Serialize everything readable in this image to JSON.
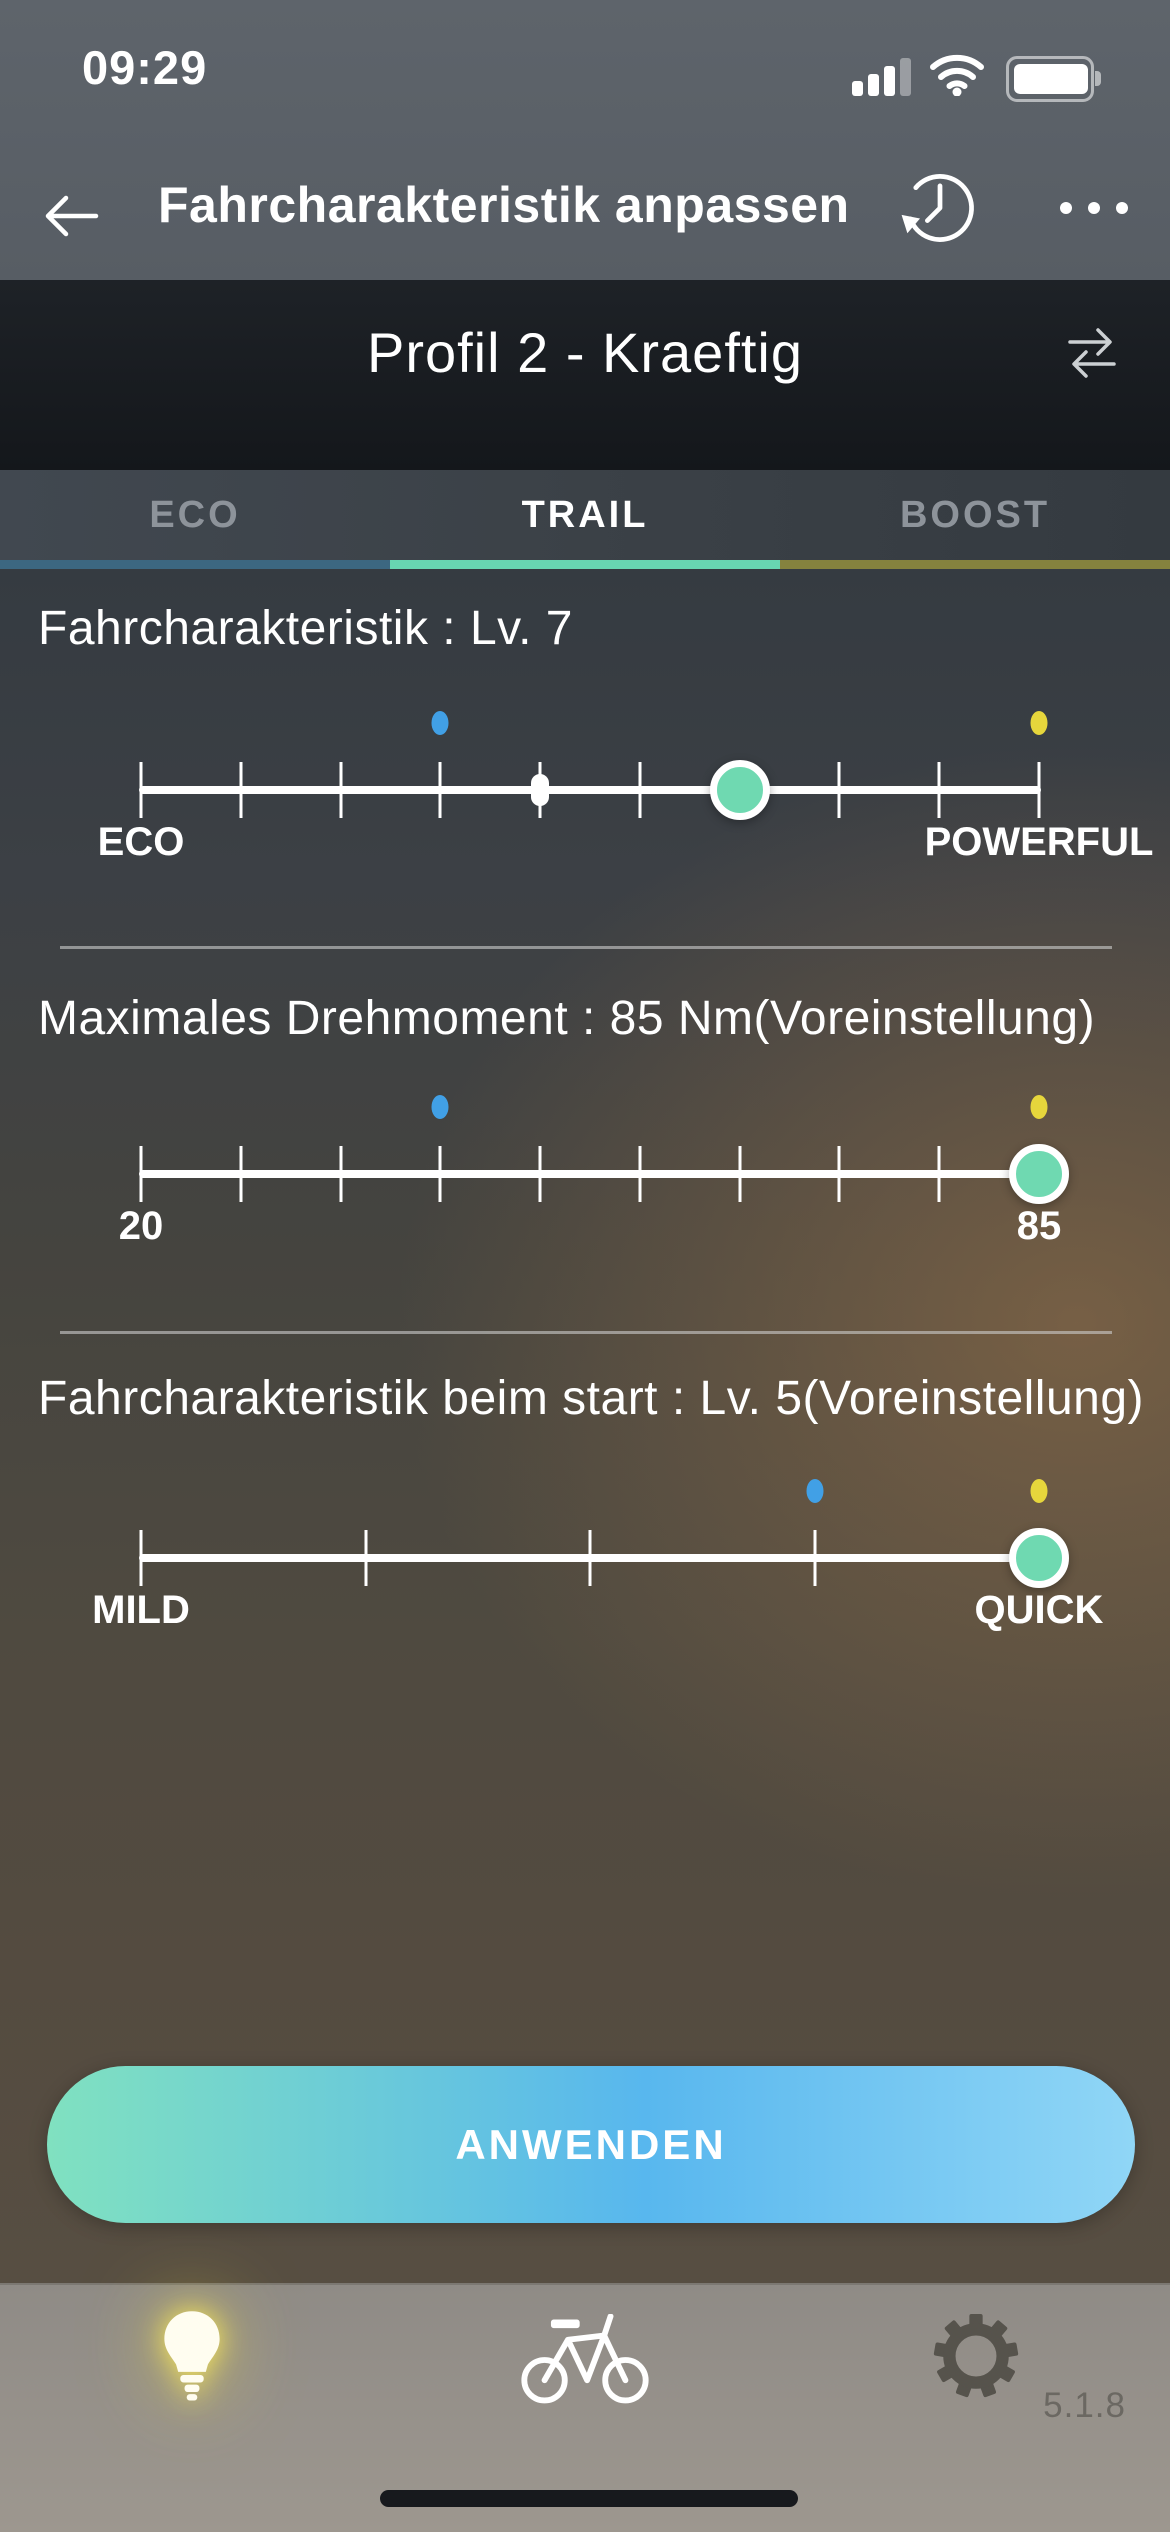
{
  "status_bar": {
    "time": "09:29",
    "signal_icon": "cellular-signal",
    "wifi_icon": "wifi",
    "battery_icon": "battery"
  },
  "header": {
    "back_icon": "back-arrow",
    "title": "Fahrcharakteristik anpassen",
    "history_icon": "history-clock",
    "menu_icon": "ellipsis-menu"
  },
  "profile": {
    "title": "Profil 2 - Kraeftig",
    "swap_icon": "swap-arrows"
  },
  "tabs": [
    {
      "label": "ECO",
      "active": false,
      "underline_color": "#3c6781"
    },
    {
      "label": "TRAIL",
      "active": true,
      "underline_color": "#68d6b2"
    },
    {
      "label": "BOOST",
      "active": false,
      "underline_color": "#85823e"
    }
  ],
  "sliders": [
    {
      "title": "Fahrcharakteristik : Lv. 7",
      "ticks": 10,
      "value": 7,
      "preset_marker": 5,
      "eco_marker": 4,
      "boost_marker": 10,
      "left_label": "ECO",
      "right_label": "POWERFUL"
    },
    {
      "title": "Maximales Drehmoment : 85 Nm(Voreinstellung)",
      "ticks": 10,
      "value": 10,
      "preset_marker": null,
      "eco_marker": 4,
      "boost_marker": 10,
      "left_label": "20",
      "right_label": "85"
    },
    {
      "title": "Fahrcharakteristik beim start : Lv. 5(Voreinstellung)",
      "ticks": 5,
      "value": 5,
      "preset_marker": null,
      "eco_marker": 4,
      "boost_marker": 5,
      "left_label": "MILD",
      "right_label": "QUICK"
    }
  ],
  "apply_button": {
    "label": "ANWENDEN"
  },
  "bottom_nav": {
    "items": [
      {
        "icon": "lightbulb-icon",
        "active": true
      },
      {
        "icon": "bicycle-icon",
        "active": false
      },
      {
        "icon": "gear-icon",
        "active": false
      }
    ],
    "version": "5.1.8"
  },
  "colors": {
    "accent_teal": "#6fd9b1",
    "eco_marker_blue": "#41a0e6",
    "boost_marker_yellow": "#e6d63c",
    "apply_gradient_start": "#80e1c0",
    "apply_gradient_mid": "#58b7ee",
    "apply_gradient_end": "#90d6f6",
    "bulb_glow": "#ffe95c",
    "gear_gray": "#56534c"
  }
}
